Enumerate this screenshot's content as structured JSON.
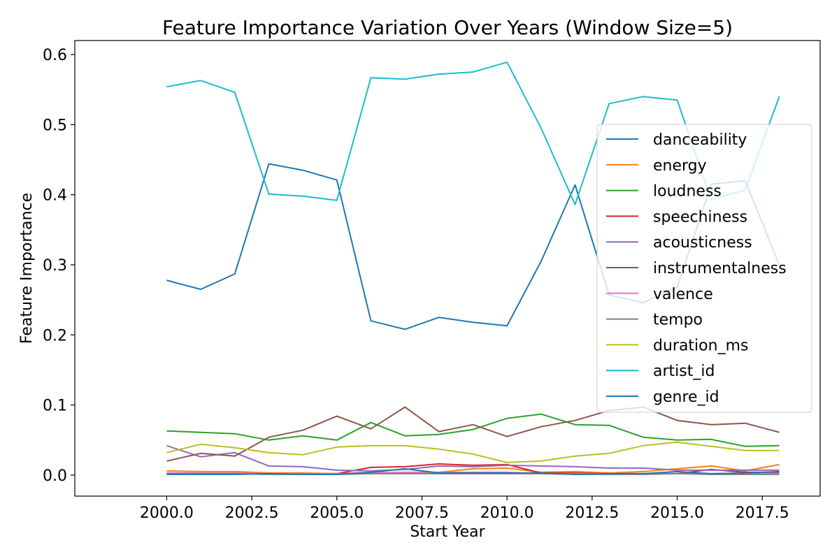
{
  "chart_data": {
    "type": "line",
    "title": "Feature Importance Variation Over Years (Window Size=5)",
    "xlabel": "Start Year",
    "ylabel": "Feature Importance",
    "xlim": [
      1997.3,
      2019.2
    ],
    "ylim": [
      -0.03,
      0.62
    ],
    "x_ticks": [
      2000.0,
      2002.5,
      2005.0,
      2007.5,
      2010.0,
      2012.5,
      2015.0,
      2017.5
    ],
    "x_tick_labels": [
      "2000.0",
      "2002.5",
      "2005.0",
      "2007.5",
      "2010.0",
      "2012.5",
      "2015.0",
      "2017.5"
    ],
    "y_ticks": [
      0.0,
      0.1,
      0.2,
      0.3,
      0.4,
      0.5,
      0.6
    ],
    "y_tick_labels": [
      "0.0",
      "0.1",
      "0.2",
      "0.3",
      "0.4",
      "0.5",
      "0.6"
    ],
    "grid": false,
    "legend_position": "center-right",
    "x": [
      2000,
      2001,
      2002,
      2003,
      2004,
      2005,
      2006,
      2007,
      2008,
      2009,
      2010,
      2011,
      2012,
      2013,
      2014,
      2015,
      2016,
      2017,
      2018
    ],
    "series": [
      {
        "name": "danceability",
        "color": "#1f77b4",
        "values": [
          0.278,
          0.265,
          0.287,
          0.444,
          0.435,
          0.421,
          0.22,
          0.208,
          0.225,
          0.218,
          0.213,
          0.305,
          0.414,
          0.257,
          0.246,
          0.268,
          0.415,
          0.42,
          0.3
        ]
      },
      {
        "name": "energy",
        "color": "#ff7f0e",
        "values": [
          0.006,
          0.005,
          0.005,
          0.003,
          0.003,
          0.002,
          0.004,
          0.003,
          0.004,
          0.009,
          0.01,
          0.004,
          0.005,
          0.003,
          0.005,
          0.009,
          0.013,
          0.006,
          0.015
        ]
      },
      {
        "name": "loudness",
        "color": "#2ca02c",
        "values": [
          0.063,
          0.061,
          0.059,
          0.05,
          0.056,
          0.05,
          0.075,
          0.056,
          0.058,
          0.065,
          0.081,
          0.087,
          0.072,
          0.071,
          0.054,
          0.05,
          0.051,
          0.041,
          0.042
        ]
      },
      {
        "name": "speechiness",
        "color": "#d62728",
        "values": [
          0.002,
          0.002,
          0.002,
          0.002,
          0.002,
          0.002,
          0.011,
          0.012,
          0.016,
          0.014,
          0.015,
          0.003,
          0.003,
          0.002,
          0.002,
          0.002,
          0.008,
          0.004,
          0.004
        ]
      },
      {
        "name": "acousticness",
        "color": "#9467bd",
        "values": [
          0.042,
          0.026,
          0.032,
          0.013,
          0.012,
          0.007,
          0.006,
          0.008,
          0.013,
          0.012,
          0.014,
          0.013,
          0.012,
          0.01,
          0.01,
          0.007,
          0.007,
          0.007,
          0.007
        ]
      },
      {
        "name": "instrumentalness",
        "color": "#8c564b",
        "values": [
          0.02,
          0.031,
          0.027,
          0.054,
          0.064,
          0.084,
          0.066,
          0.097,
          0.062,
          0.072,
          0.055,
          0.069,
          0.078,
          0.092,
          0.097,
          0.078,
          0.072,
          0.074,
          0.061
        ]
      },
      {
        "name": "valence",
        "color": "#e377c2",
        "values": [
          0.003,
          0.003,
          0.003,
          0.002,
          0.002,
          0.002,
          0.003,
          0.004,
          0.004,
          0.004,
          0.004,
          0.002,
          0.002,
          0.002,
          0.002,
          0.002,
          0.002,
          0.002,
          0.002
        ]
      },
      {
        "name": "tempo",
        "color": "#7f7f7f",
        "values": [
          0.002,
          0.002,
          0.002,
          0.001,
          0.001,
          0.001,
          0.002,
          0.002,
          0.002,
          0.002,
          0.002,
          0.002,
          0.001,
          0.001,
          0.001,
          0.002,
          0.001,
          0.001,
          0.001
        ]
      },
      {
        "name": "duration_ms",
        "color": "#bcbd22",
        "values": [
          0.032,
          0.044,
          0.039,
          0.032,
          0.029,
          0.04,
          0.042,
          0.042,
          0.037,
          0.03,
          0.018,
          0.02,
          0.027,
          0.031,
          0.042,
          0.047,
          0.041,
          0.035,
          0.035
        ]
      },
      {
        "name": "artist_id",
        "color": "#17becf",
        "values": [
          0.554,
          0.563,
          0.546,
          0.401,
          0.398,
          0.392,
          0.567,
          0.565,
          0.572,
          0.575,
          0.589,
          0.495,
          0.386,
          0.53,
          0.54,
          0.535,
          0.393,
          0.407,
          0.54
        ]
      },
      {
        "name": "genre_id",
        "color": "#1f77b4",
        "values": [
          0.001,
          0.001,
          0.001,
          0.002,
          0.001,
          0.001,
          0.004,
          0.009,
          0.003,
          0.003,
          0.003,
          0.003,
          0.001,
          0.002,
          0.002,
          0.005,
          0.002,
          0.003,
          0.005
        ]
      }
    ]
  }
}
